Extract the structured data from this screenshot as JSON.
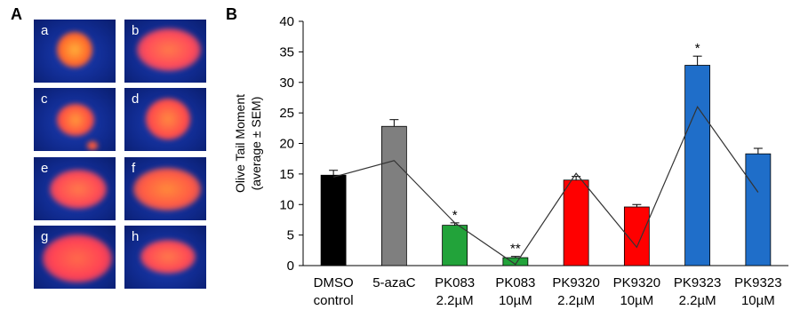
{
  "panel_a": {
    "label": "A",
    "images": [
      {
        "letter": "a"
      },
      {
        "letter": "b"
      },
      {
        "letter": "c"
      },
      {
        "letter": "d"
      },
      {
        "letter": "e"
      },
      {
        "letter": "f"
      },
      {
        "letter": "g"
      },
      {
        "letter": "h"
      }
    ]
  },
  "panel_b": {
    "label": "B"
  },
  "chart_data": {
    "type": "bar",
    "ylabel_line1": "Olive Tail Moment",
    "ylabel_line2": "(average ± SEM)",
    "ylim": [
      0,
      40
    ],
    "yticks": [
      0,
      5,
      10,
      15,
      20,
      25,
      30,
      35,
      40
    ],
    "categories": [
      {
        "line1": "DMSO",
        "line2": "control"
      },
      {
        "line1": "5-azaC",
        "line2": ""
      },
      {
        "line1": "PK083",
        "line2": "2.2µM"
      },
      {
        "line1": "PK083",
        "line2": "10µM"
      },
      {
        "line1": "PK9320",
        "line2": "2.2µM"
      },
      {
        "line1": "PK9320",
        "line2": "10µM"
      },
      {
        "line1": "PK9323",
        "line2": "2.2µM"
      },
      {
        "line1": "PK9323",
        "line2": "10µM"
      }
    ],
    "values": [
      14.8,
      22.8,
      6.6,
      1.3,
      14.0,
      9.6,
      32.8,
      18.3
    ],
    "errors": [
      0.8,
      1.1,
      0.4,
      0.2,
      0.6,
      0.4,
      1.5,
      0.9
    ],
    "significance": [
      "",
      "",
      "*",
      "**",
      "",
      "",
      "*",
      ""
    ],
    "bar_colors": [
      "#000000",
      "#7f7f7f",
      "#22a33a",
      "#22a33a",
      "#ff0000",
      "#ff0000",
      "#1f6ec9",
      "#1f6ec9"
    ],
    "trend_line": [
      14.5,
      17.2,
      7.0,
      0.2,
      15.1,
      3.0,
      26.0,
      12.0
    ],
    "grid": false,
    "legend": "none"
  }
}
